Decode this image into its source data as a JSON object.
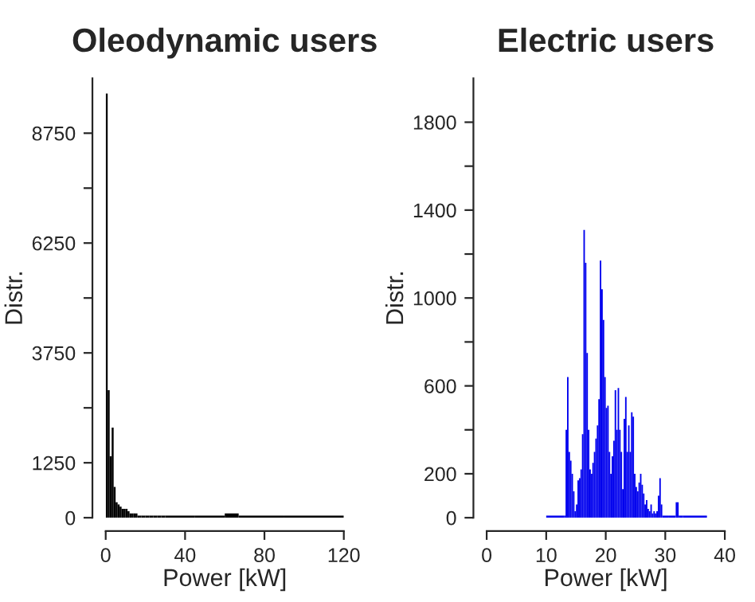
{
  "chart_data": [
    {
      "type": "histogram",
      "title": "Oleodynamic users",
      "xlabel": "Power [kW]",
      "ylabel": "Distr.",
      "color": "#000000",
      "bins": [
        0,
        1,
        2,
        3,
        4,
        5,
        6,
        7,
        8,
        9,
        10,
        11,
        12,
        13,
        14,
        15,
        16,
        17,
        18,
        19,
        20,
        21,
        22,
        23,
        24,
        25,
        26,
        27,
        28,
        29,
        30,
        45,
        60,
        67,
        90,
        120
      ],
      "values": [
        9650,
        2900,
        1400,
        2050,
        700,
        350,
        300,
        250,
        200,
        200,
        200,
        150,
        100,
        100,
        100,
        100,
        50,
        50,
        50,
        50,
        50,
        50,
        50,
        50,
        50,
        50,
        50,
        50,
        50,
        50,
        50,
        50,
        100,
        50,
        50
      ],
      "xlim": [
        0,
        120
      ],
      "xticks": [
        0,
        40,
        80,
        120
      ],
      "ylim": [
        0,
        10000
      ],
      "yticks": [
        0,
        1250,
        {
          "value": 2500,
          "label": null
        },
        3750,
        {
          "value": 5000,
          "label": null
        },
        6250,
        {
          "value": 7500,
          "label": null
        },
        8750
      ],
      "grid": false
    },
    {
      "type": "histogram",
      "title": "Electric users",
      "xlabel": "Power [kW]",
      "ylabel": "Distr.",
      "color": "#0000ee",
      "bins": [
        10,
        13,
        13.25,
        13.5,
        13.75,
        14,
        14.25,
        14.5,
        14.75,
        15,
        15.25,
        15.5,
        15.75,
        16,
        16.25,
        16.5,
        16.75,
        17,
        17.25,
        17.5,
        17.75,
        18,
        18.25,
        18.5,
        18.75,
        19,
        19.25,
        19.5,
        19.75,
        20,
        20.25,
        20.5,
        20.75,
        21,
        21.25,
        21.5,
        21.75,
        22,
        22.25,
        22.5,
        22.75,
        23,
        23.25,
        23.5,
        23.75,
        24,
        24.25,
        24.5,
        24.75,
        25,
        25.25,
        25.5,
        25.75,
        26,
        26.25,
        26.5,
        26.75,
        27,
        27.25,
        27.5,
        27.75,
        28,
        28.25,
        28.5,
        28.75,
        29,
        29.25,
        29.5,
        30.5,
        31.75,
        32.25,
        33,
        37
      ],
      "values": [
        10,
        10,
        400,
        640,
        300,
        260,
        200,
        120,
        30,
        60,
        170,
        180,
        220,
        380,
        1310,
        1160,
        750,
        400,
        220,
        200,
        250,
        300,
        360,
        420,
        540,
        1170,
        1040,
        900,
        640,
        500,
        510,
        300,
        200,
        280,
        350,
        580,
        400,
        590,
        400,
        300,
        130,
        450,
        550,
        300,
        420,
        300,
        480,
        460,
        200,
        140,
        120,
        160,
        200,
        150,
        110,
        60,
        80,
        40,
        30,
        60,
        20,
        30,
        20,
        30,
        100,
        180,
        60,
        10,
        10,
        70,
        10,
        10
      ],
      "xlim": [
        0,
        40
      ],
      "xticks": [
        0,
        10,
        20,
        30,
        40
      ],
      "ylim": [
        0,
        2000
      ],
      "yticks": [
        0,
        200,
        {
          "value": 400,
          "label": null
        },
        600,
        {
          "value": 800,
          "label": null
        },
        1000,
        {
          "value": 1200,
          "label": null
        },
        1400,
        {
          "value": 1600,
          "label": null
        },
        1800
      ],
      "grid": false
    }
  ]
}
